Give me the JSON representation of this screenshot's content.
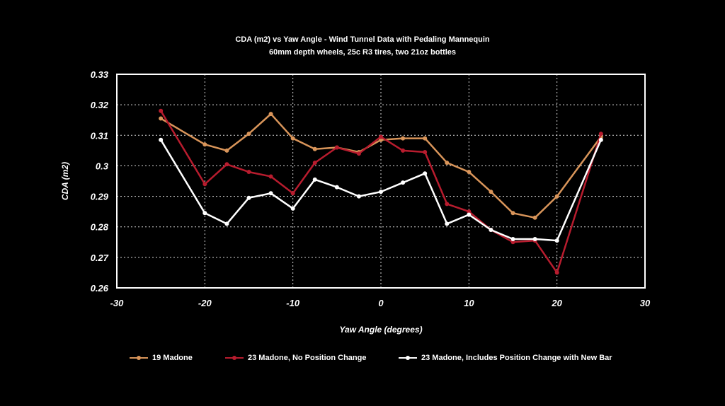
{
  "chart_data": {
    "type": "line",
    "title": "CDA (m2) vs Yaw Angle - Wind Tunnel Data with Pedaling Mannequin",
    "subtitle": "60mm depth wheels, 25c R3 tires, two 21oz bottles",
    "xlabel": "Yaw Angle (degrees)",
    "ylabel": "CDA (m2)",
    "xlim": [
      -30,
      30
    ],
    "ylim": [
      0.26,
      0.33
    ],
    "xticks": [
      "-30",
      "-20",
      "-10",
      "0",
      "10",
      "20",
      "30"
    ],
    "yticks": [
      "0.26",
      "0.27",
      "0.28",
      "0.29",
      "0.3",
      "0.31",
      "0.32",
      "0.33"
    ],
    "grid": true,
    "legend_position": "bottom",
    "series": [
      {
        "name": "19 Madone",
        "color": "#d9955a",
        "x": [
          -25,
          -20,
          -17.5,
          -15,
          -12.5,
          -10,
          -7.5,
          -5,
          -2.5,
          0,
          2.5,
          5,
          7.5,
          10,
          12.5,
          15,
          17.5,
          20,
          25
        ],
        "y": [
          0.3155,
          0.307,
          0.305,
          0.3105,
          0.317,
          0.309,
          0.3055,
          0.306,
          0.3045,
          0.3085,
          0.309,
          0.309,
          0.301,
          0.298,
          0.2915,
          0.2845,
          0.283,
          0.29,
          0.3095
        ]
      },
      {
        "name": "23 Madone, No Position Change",
        "color": "#b81c2e",
        "x": [
          -25,
          -20,
          -17.5,
          -15,
          -12.5,
          -10,
          -7.5,
          -5,
          -2.5,
          0,
          2.5,
          5,
          7.5,
          10,
          12.5,
          15,
          17.5,
          20,
          25
        ],
        "y": [
          0.318,
          0.294,
          0.3005,
          0.298,
          0.2965,
          0.291,
          0.301,
          0.306,
          0.304,
          0.3095,
          0.305,
          0.3045,
          0.2875,
          0.285,
          0.279,
          0.275,
          0.2755,
          0.265,
          0.3105
        ]
      },
      {
        "name": "23 Madone, Includes Position Change with New Bar",
        "color": "#ffffff",
        "x": [
          -25,
          -20,
          -17.5,
          -15,
          -12.5,
          -10,
          -7.5,
          -5,
          -2.5,
          0,
          2.5,
          5,
          7.5,
          10,
          12.5,
          15,
          17.5,
          20,
          25
        ],
        "y": [
          0.3085,
          0.2845,
          0.281,
          0.2895,
          0.291,
          0.286,
          0.2955,
          0.293,
          0.29,
          0.2915,
          0.2945,
          0.2975,
          0.281,
          0.284,
          0.279,
          0.276,
          0.276,
          0.2755,
          0.3085
        ]
      }
    ]
  }
}
